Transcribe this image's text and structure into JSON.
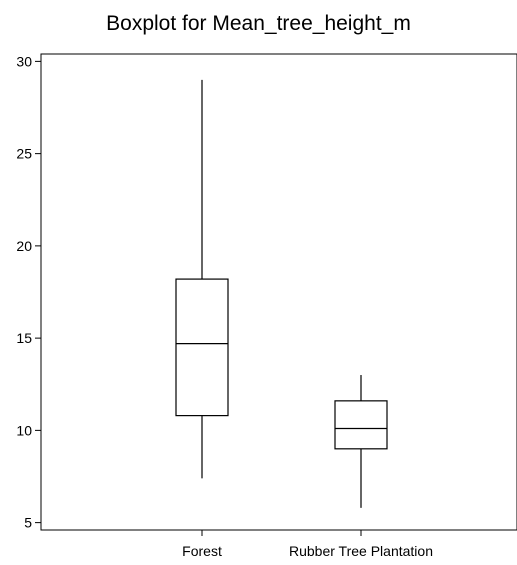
{
  "chart_data": {
    "type": "box",
    "title": "Boxplot for Mean_tree_height_m",
    "xlabel": "",
    "ylabel": "",
    "ylim": [
      4.6,
      30.4
    ],
    "yticks": [
      5,
      10,
      15,
      20,
      25,
      30
    ],
    "grid": false,
    "categories": [
      "Forest",
      "Rubber Tree Plantation"
    ],
    "boxes": [
      {
        "category": "Forest",
        "min": 7.4,
        "q1": 10.8,
        "median": 14.7,
        "q3": 18.2,
        "max": 29.0
      },
      {
        "category": "Rubber Tree Plantation",
        "min": 5.8,
        "q1": 9.0,
        "median": 10.1,
        "q3": 11.6,
        "max": 13.0
      }
    ],
    "colors": {
      "stroke": "#000000",
      "fill": "#ffffff"
    }
  }
}
